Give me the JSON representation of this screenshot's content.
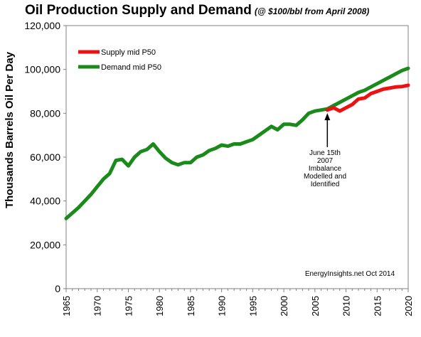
{
  "chart_data": {
    "type": "line",
    "title": "Oil Production Supply and Demand",
    "subtitle": "(@ $100/bbl from April 2008)",
    "xlabel": "",
    "ylabel": "Thousands  Barrels  Oil Per Day",
    "xlim": [
      1965,
      2020
    ],
    "ylim": [
      0,
      120000
    ],
    "y_ticks": [
      "0",
      "20,000",
      "40,000",
      "60,000",
      "80,000",
      "100,000",
      "120,000"
    ],
    "x_ticks": [
      "1965",
      "1970",
      "1975",
      "1980",
      "1985",
      "1990",
      "1995",
      "2000",
      "2005",
      "2010",
      "2015",
      "2020"
    ],
    "grid": false,
    "legend_position": "top-left",
    "series": [
      {
        "name": "Supply mid  P50",
        "color": "#ee1111",
        "x": [
          2007,
          2008,
          2009,
          2010,
          2011,
          2012,
          2013,
          2014,
          2015,
          2016,
          2017,
          2018,
          2019,
          2020
        ],
        "values": [
          81500,
          82500,
          81000,
          82500,
          84000,
          86500,
          87000,
          89000,
          90000,
          91000,
          91500,
          92000,
          92200,
          92800
        ]
      },
      {
        "name": "Demand mid  P50",
        "color": "#1a8a1a",
        "x": [
          1965,
          1966,
          1967,
          1968,
          1969,
          1970,
          1971,
          1972,
          1973,
          1974,
          1975,
          1976,
          1977,
          1978,
          1979,
          1980,
          1981,
          1982,
          1983,
          1984,
          1985,
          1986,
          1987,
          1988,
          1989,
          1990,
          1991,
          1992,
          1993,
          1994,
          1995,
          1996,
          1997,
          1998,
          1999,
          2000,
          2001,
          2002,
          2003,
          2004,
          2005,
          2006,
          2007,
          2008,
          2009,
          2010,
          2011,
          2012,
          2013,
          2014,
          2015,
          2016,
          2017,
          2018,
          2019,
          2020
        ],
        "values": [
          32000,
          34500,
          37000,
          40000,
          43000,
          46500,
          50000,
          52500,
          58500,
          59000,
          56000,
          60000,
          62500,
          63500,
          66000,
          62500,
          59500,
          57500,
          56500,
          57500,
          57500,
          60000,
          61000,
          63000,
          64000,
          65500,
          65000,
          66000,
          66000,
          67000,
          68000,
          70000,
          72000,
          74000,
          72500,
          75000,
          75000,
          74500,
          77000,
          80000,
          81000,
          81500,
          82000,
          83500,
          85000,
          86500,
          88000,
          89500,
          90500,
          92000,
          93500,
          95000,
          96500,
          98000,
          99500,
          100500
        ]
      }
    ],
    "annotation": {
      "x": 2007,
      "y_tip": 82000,
      "lines": [
        "June  15th",
        "2007",
        "Imbalance",
        "Modelled  and",
        "Identified"
      ]
    },
    "credit": "EnergyInsights.net  Oct 2014"
  }
}
